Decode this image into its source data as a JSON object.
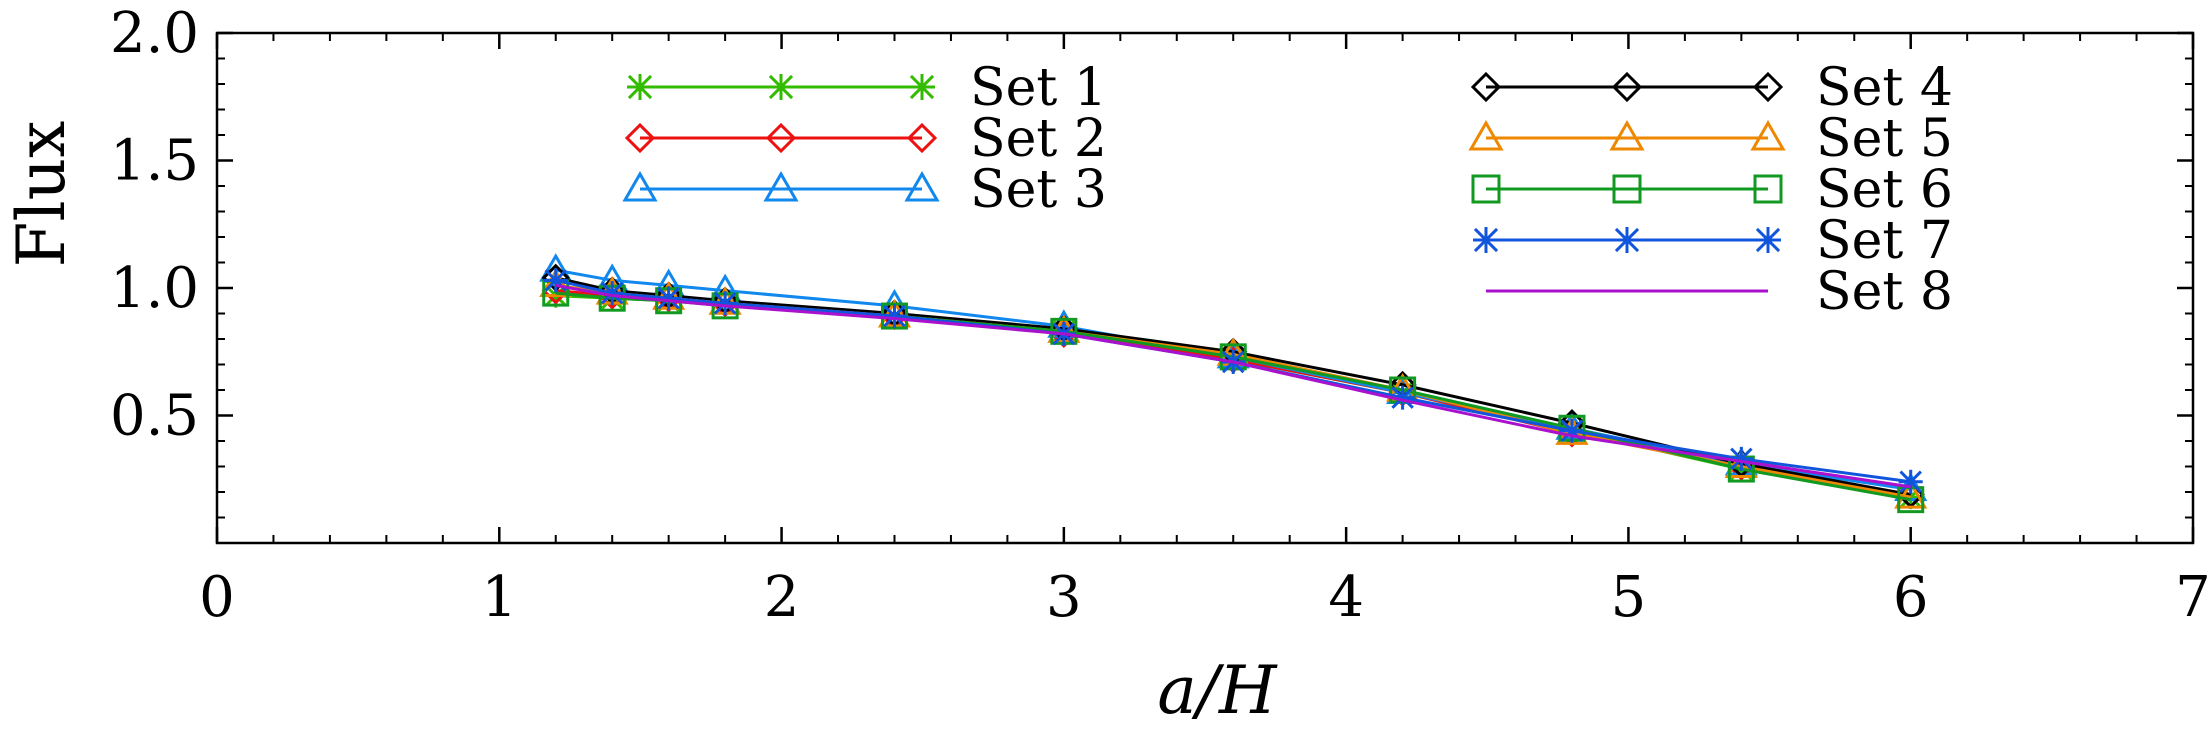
{
  "chart_data": {
    "type": "line",
    "xlabel": "a/H",
    "ylabel": "Flux",
    "xlim": [
      0,
      7
    ],
    "ylim": [
      0,
      2.0
    ],
    "x_ticks": [
      "0",
      "1",
      "2",
      "3",
      "4",
      "5",
      "6",
      "7"
    ],
    "y_ticks": [
      "0.5",
      "1.0",
      "1.5",
      "2.0"
    ],
    "x": [
      1.2,
      1.4,
      1.6,
      1.8,
      2.4,
      3.0,
      3.6,
      4.2,
      4.8,
      5.4,
      6.0
    ],
    "series": [
      {
        "name": "Set 1",
        "color": "#33bb00",
        "marker": "asterisk",
        "values": [
          0.97,
          0.96,
          0.95,
          0.94,
          0.89,
          0.83,
          0.72,
          0.59,
          0.44,
          0.29,
          0.18
        ]
      },
      {
        "name": "Set 2",
        "color": "#ee1111",
        "marker": "diamond",
        "values": [
          0.99,
          0.97,
          0.96,
          0.94,
          0.89,
          0.82,
          0.72,
          0.59,
          0.43,
          0.3,
          0.19
        ]
      },
      {
        "name": "Set 3",
        "color": "#1188ee",
        "marker": "triangle",
        "values": [
          1.07,
          1.03,
          1.01,
          0.99,
          0.93,
          0.85,
          0.73,
          0.59,
          0.45,
          0.31,
          0.21
        ]
      },
      {
        "name": "Set 4",
        "color": "#000000",
        "marker": "diamond",
        "values": [
          1.04,
          0.99,
          0.97,
          0.95,
          0.9,
          0.84,
          0.75,
          0.62,
          0.47,
          0.31,
          0.19
        ]
      },
      {
        "name": "Set 5",
        "color": "#ee8800",
        "marker": "triangle",
        "values": [
          1.01,
          0.98,
          0.96,
          0.94,
          0.89,
          0.83,
          0.74,
          0.6,
          0.43,
          0.3,
          0.18
        ]
      },
      {
        "name": "Set 6",
        "color": "#119922",
        "marker": "square",
        "values": [
          0.98,
          0.96,
          0.95,
          0.93,
          0.89,
          0.83,
          0.73,
          0.6,
          0.45,
          0.29,
          0.17
        ]
      },
      {
        "name": "Set 7",
        "color": "#1155dd",
        "marker": "asterisk",
        "values": [
          1.03,
          0.98,
          0.96,
          0.94,
          0.89,
          0.82,
          0.71,
          0.57,
          0.44,
          0.33,
          0.24
        ]
      },
      {
        "name": "Set 8",
        "color": "#aa11cc",
        "marker": "none",
        "values": [
          1.01,
          0.97,
          0.95,
          0.93,
          0.88,
          0.82,
          0.71,
          0.56,
          0.42,
          0.32,
          0.22
        ]
      }
    ],
    "legend": {
      "placement": "inside-top",
      "columns": [
        [
          "Set 1",
          "Set 2",
          "Set 3"
        ],
        [
          "Set 4",
          "Set 5",
          "Set 6",
          "Set 7",
          "Set 8"
        ]
      ]
    },
    "grid": false
  }
}
